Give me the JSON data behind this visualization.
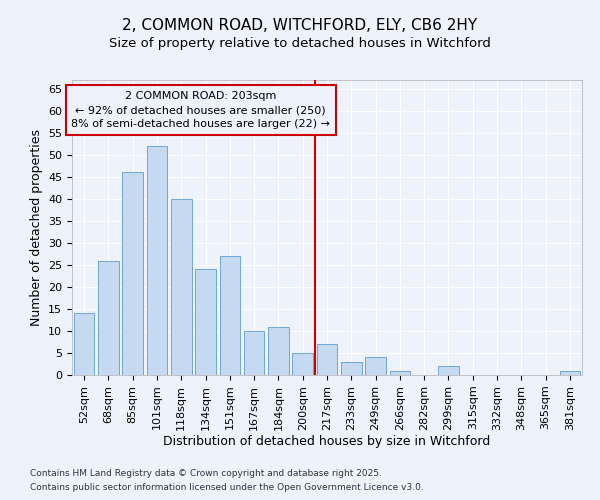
{
  "title_line1": "2, COMMON ROAD, WITCHFORD, ELY, CB6 2HY",
  "title_line2": "Size of property relative to detached houses in Witchford",
  "xlabel": "Distribution of detached houses by size in Witchford",
  "ylabel": "Number of detached properties",
  "categories": [
    "52sqm",
    "68sqm",
    "85sqm",
    "101sqm",
    "118sqm",
    "134sqm",
    "151sqm",
    "167sqm",
    "184sqm",
    "200sqm",
    "217sqm",
    "233sqm",
    "249sqm",
    "266sqm",
    "282sqm",
    "299sqm",
    "315sqm",
    "332sqm",
    "348sqm",
    "365sqm",
    "381sqm"
  ],
  "values": [
    14,
    26,
    46,
    52,
    40,
    24,
    27,
    10,
    11,
    5,
    7,
    3,
    4,
    1,
    0,
    2,
    0,
    0,
    0,
    0,
    1
  ],
  "bar_color": "#c5d9f0",
  "bar_edge_color": "#6fa8d4",
  "background_color": "#eef2fa",
  "grid_color": "#ffffff",
  "vline_x": 9.5,
  "vline_color": "#cc0000",
  "annotation_line1": "2 COMMON ROAD: 203sqm",
  "annotation_line2": "← 92% of detached houses are smaller (250)",
  "annotation_line3": "8% of semi-detached houses are larger (22) →",
  "annotation_box_color": "#cc0000",
  "ylim": [
    0,
    67
  ],
  "yticks": [
    0,
    5,
    10,
    15,
    20,
    25,
    30,
    35,
    40,
    45,
    50,
    55,
    60,
    65
  ],
  "title_fontsize": 11,
  "subtitle_fontsize": 9.5,
  "tick_fontsize": 8,
  "axis_label_fontsize": 9,
  "annotation_fontsize": 8,
  "footnote_fontsize": 6.5,
  "footnote_line1": "Contains HM Land Registry data © Crown copyright and database right 2025.",
  "footnote_line2": "Contains public sector information licensed under the Open Government Licence v3.0."
}
